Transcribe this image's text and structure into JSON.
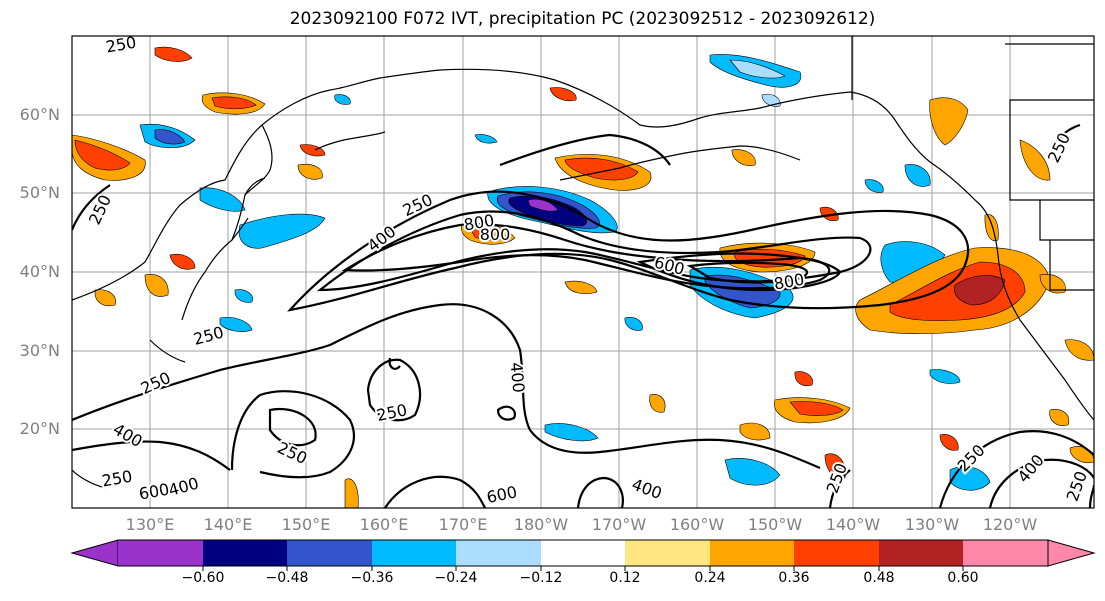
{
  "title": "2023092100 F072 IVT, precipitation PC (2023092512 - 2023092612)",
  "lat_labels": [
    "60°N",
    "50°N",
    "40°N",
    "30°N",
    "20°N"
  ],
  "lon_labels": [
    "130°E",
    "140°E",
    "150°E",
    "160°E",
    "170°E",
    "180°W",
    "170°W",
    "160°W",
    "150°W",
    "140°W",
    "130°W",
    "120°W"
  ],
  "colorbar": {
    "tick_labels": [
      "−0.60",
      "−0.48",
      "−0.36",
      "−0.24",
      "−0.12",
      "0.12",
      "0.24",
      "0.36",
      "0.48",
      "0.60"
    ],
    "colors": [
      "#9933cc",
      "#000080",
      "#3355cc",
      "#00bbff",
      "#aaddff",
      "#ffffff",
      "#ffe680",
      "#ffa500",
      "#ff4000",
      "#b22222",
      "#ff88aa"
    ]
  },
  "contour_labels": [
    "250",
    "250",
    "400",
    "800",
    "800",
    "600",
    "800",
    "400",
    "250",
    "250",
    "400",
    "250",
    "250",
    "400",
    "250",
    "600",
    "600",
    "400",
    "250",
    "250",
    "400",
    "250",
    "250"
  ]
}
